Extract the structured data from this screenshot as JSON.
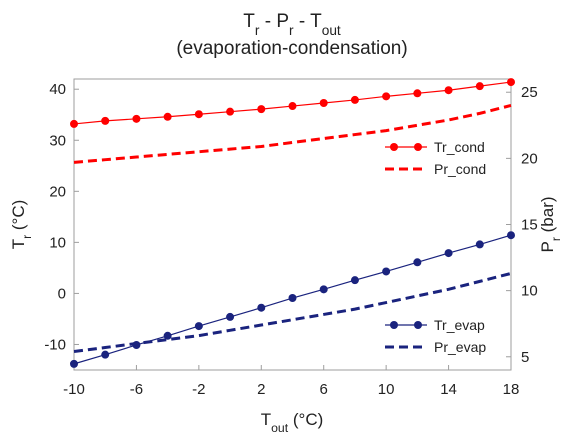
{
  "chart_data": {
    "type": "line",
    "title": {
      "main": "Tr - Pr - Tout",
      "parts": [
        {
          "base": "T",
          "sub": "r"
        },
        {
          "sep": " - "
        },
        {
          "base": "P",
          "sub": "r"
        },
        {
          "sep": " - "
        },
        {
          "base": "T",
          "sub": "out"
        }
      ]
    },
    "subtitle": "(evaporation-condensation)",
    "xlabel": {
      "base": "T",
      "sub": "out",
      "rest": " (°C)"
    },
    "ylabel_left": {
      "base": "T",
      "sub": "r",
      "rest": " (°C)"
    },
    "ylabel_right": {
      "base": "P",
      "sub": "r",
      "rest": " (bar)"
    },
    "xlim": [
      -10,
      18
    ],
    "ylim_left": [
      -15,
      42
    ],
    "ylim_right": [
      4,
      26
    ],
    "x_ticks": [
      -10,
      -6,
      -2,
      2,
      6,
      10,
      14,
      18
    ],
    "y_ticks_left": [
      -10,
      0,
      10,
      20,
      30,
      40
    ],
    "y_ticks_right": [
      5,
      10,
      15,
      20,
      25
    ],
    "grid": false,
    "legend": [
      {
        "placement": "upper-right",
        "entries": [
          "Tr_cond",
          "Pr_cond"
        ]
      },
      {
        "placement": "lower-right",
        "entries": [
          "Tr_evap",
          "Pr_evap"
        ]
      }
    ],
    "series": [
      {
        "name": "Tr_cond",
        "axis": "left",
        "style": "solid-markers",
        "color": "#ff0000",
        "x": [
          -10,
          -8,
          -6,
          -4,
          -2,
          0,
          2,
          4,
          6,
          8,
          10,
          12,
          14,
          16,
          18
        ],
        "y": [
          33.2,
          33.8,
          34.2,
          34.6,
          35.1,
          35.6,
          36.1,
          36.7,
          37.3,
          37.9,
          38.6,
          39.2,
          39.8,
          40.6,
          41.4
        ]
      },
      {
        "name": "Pr_cond",
        "axis": "right",
        "style": "dashed",
        "color": "#ff0000",
        "x": [
          -10,
          -8,
          -6,
          -4,
          -2,
          0,
          2,
          4,
          6,
          8,
          10,
          12,
          14,
          16,
          18
        ],
        "y": [
          19.7,
          19.9,
          20.1,
          20.3,
          20.5,
          20.7,
          20.9,
          21.2,
          21.5,
          21.8,
          22.1,
          22.5,
          22.9,
          23.4,
          24.0
        ]
      },
      {
        "name": "Tr_evap",
        "axis": "left",
        "style": "solid-markers",
        "color": "#1a237e",
        "x": [
          -10,
          -8,
          -6,
          -4,
          -2,
          0,
          2,
          4,
          6,
          8,
          10,
          12,
          14,
          16,
          18
        ],
        "y": [
          -13.8,
          -12.0,
          -10.1,
          -8.3,
          -6.4,
          -4.6,
          -2.8,
          -0.9,
          0.8,
          2.6,
          4.3,
          6.1,
          7.9,
          9.6,
          11.4
        ]
      },
      {
        "name": "Pr_evap",
        "axis": "right",
        "style": "dashed",
        "color": "#1a237e",
        "x": [
          -10,
          -8,
          -6,
          -4,
          -2,
          0,
          2,
          4,
          6,
          8,
          10,
          12,
          14,
          16,
          18
        ],
        "y": [
          5.4,
          5.7,
          6.0,
          6.3,
          6.6,
          7.0,
          7.4,
          7.8,
          8.2,
          8.6,
          9.1,
          9.6,
          10.1,
          10.7,
          11.3
        ]
      }
    ]
  }
}
